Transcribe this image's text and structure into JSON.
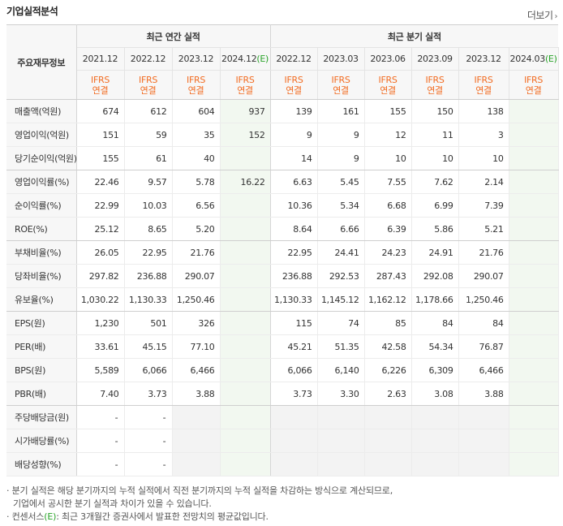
{
  "header": {
    "title": "기업실적분석",
    "more_label": "더보기",
    "more_arrow": "›"
  },
  "table": {
    "corner_label": "주요재무정보",
    "group_annual": "최근 연간 실적",
    "group_quarter": "최근 분기 실적",
    "annual_periods": [
      "2021.12",
      "2022.12",
      "2023.12",
      "2024.12"
    ],
    "annual_est_mark": "(E)",
    "quarter_periods": [
      "2022.12",
      "2023.03",
      "2023.06",
      "2023.09",
      "2023.12",
      "2024.03"
    ],
    "quarter_est_mark": "(E)",
    "basis_top": "IFRS",
    "basis_bottom": "연결",
    "rows": [
      {
        "label": "매출액(억원)",
        "annual": [
          "674",
          "612",
          "604",
          "937"
        ],
        "quarter": [
          "139",
          "161",
          "155",
          "150",
          "138",
          ""
        ]
      },
      {
        "label": "영업이익(억원)",
        "annual": [
          "151",
          "59",
          "35",
          "152"
        ],
        "quarter": [
          "9",
          "9",
          "12",
          "11",
          "3",
          ""
        ]
      },
      {
        "label": "당기순이익(억원)",
        "annual": [
          "155",
          "61",
          "40",
          ""
        ],
        "quarter": [
          "14",
          "9",
          "10",
          "10",
          "10",
          ""
        ]
      },
      {
        "label": "영업이익률(%)",
        "annual": [
          "22.46",
          "9.57",
          "5.78",
          "16.22"
        ],
        "quarter": [
          "6.63",
          "5.45",
          "7.55",
          "7.62",
          "2.14",
          ""
        ]
      },
      {
        "label": "순이익률(%)",
        "annual": [
          "22.99",
          "10.03",
          "6.56",
          ""
        ],
        "quarter": [
          "10.36",
          "5.34",
          "6.68",
          "6.99",
          "7.39",
          ""
        ]
      },
      {
        "label": "ROE(%)",
        "annual": [
          "25.12",
          "8.65",
          "5.20",
          ""
        ],
        "quarter": [
          "8.64",
          "6.66",
          "6.39",
          "5.86",
          "5.21",
          ""
        ]
      },
      {
        "label": "부채비율(%)",
        "annual": [
          "26.05",
          "22.95",
          "21.76",
          ""
        ],
        "quarter": [
          "22.95",
          "24.41",
          "24.23",
          "24.91",
          "21.76",
          ""
        ]
      },
      {
        "label": "당좌비율(%)",
        "annual": [
          "297.82",
          "236.88",
          "290.07",
          ""
        ],
        "quarter": [
          "236.88",
          "292.53",
          "287.43",
          "292.08",
          "290.07",
          ""
        ]
      },
      {
        "label": "유보율(%)",
        "annual": [
          "1,030.22",
          "1,130.33",
          "1,250.46",
          ""
        ],
        "quarter": [
          "1,130.33",
          "1,145.12",
          "1,162.12",
          "1,178.66",
          "1,250.46",
          ""
        ]
      },
      {
        "label": "EPS(원)",
        "annual": [
          "1,230",
          "501",
          "326",
          ""
        ],
        "quarter": [
          "115",
          "74",
          "85",
          "84",
          "84",
          ""
        ]
      },
      {
        "label": "PER(배)",
        "annual": [
          "33.61",
          "45.15",
          "77.10",
          ""
        ],
        "quarter": [
          "45.21",
          "51.35",
          "42.58",
          "54.34",
          "76.87",
          ""
        ]
      },
      {
        "label": "BPS(원)",
        "annual": [
          "5,589",
          "6,066",
          "6,466",
          ""
        ],
        "quarter": [
          "6,066",
          "6,140",
          "6,226",
          "6,309",
          "6,466",
          ""
        ]
      },
      {
        "label": "PBR(배)",
        "annual": [
          "7.40",
          "3.73",
          "3.88",
          ""
        ],
        "quarter": [
          "3.73",
          "3.30",
          "2.63",
          "3.08",
          "3.88",
          ""
        ]
      },
      {
        "label": "주당배당금(원)",
        "annual": [
          "-",
          "-",
          "",
          ""
        ],
        "quarter": [
          "",
          "",
          "",
          "",
          "",
          ""
        ]
      },
      {
        "label": "시가배당률(%)",
        "annual": [
          "-",
          "-",
          "",
          ""
        ],
        "quarter": [
          "",
          "",
          "",
          "",
          "",
          ""
        ]
      },
      {
        "label": "배당성향(%)",
        "annual": [
          "-",
          "-",
          "",
          ""
        ],
        "quarter": [
          "",
          "",
          "",
          "",
          "",
          ""
        ]
      }
    ]
  },
  "notes": {
    "line1": "· 분기 실적은 해당 분기까지의 누적 실적에서 직전 분기까지의 누적 실적을 차감하는 방식으로 계산되므로,",
    "line2": "기업에서 공시한 분기 실적과 차이가 있을 수 있습니다.",
    "line3_prefix": "· 컨센서스",
    "line3_mark": "(E)",
    "line3_rest": ": 최근 3개월간 증권사에서 발표한 전망치의 평균값입니다."
  },
  "colors": {
    "ifrs": "#f26c22",
    "estimate": "#29a329",
    "header_bg": "#f7f7f7"
  }
}
